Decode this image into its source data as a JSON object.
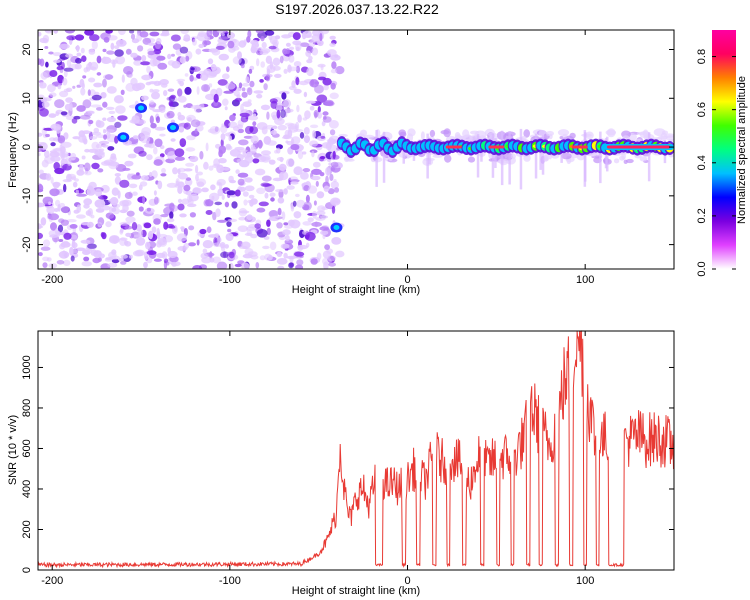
{
  "title": "S197.2026.037.13.22.R22",
  "chart_data": [
    {
      "type": "heatmap",
      "xlabel": "Height of straight line (km)",
      "ylabel": "Frequency (Hz)",
      "xlim": [
        -208,
        150
      ],
      "ylim": [
        -25,
        24
      ],
      "xticks": [
        -200,
        -100,
        0,
        100
      ],
      "yticks": [
        -20,
        -10,
        0,
        10,
        20
      ],
      "noise_region_x": [
        -208,
        -38
      ],
      "signal_ridge_frequency": 0,
      "signal_start_x": -37,
      "colorbar": {
        "label": "Normalized spectral amplitude",
        "range": [
          0.0,
          0.9
        ],
        "ticks": [
          0.0,
          0.2,
          0.4,
          0.6,
          0.8
        ],
        "tick_labels": [
          "0.0",
          "0.2",
          "0.4",
          "0.6",
          "0.8"
        ],
        "colormap": [
          "#ffffff",
          "#e040ff",
          "#7a00e0",
          "#0000ff",
          "#00c0ff",
          "#00ff80",
          "#40ff00",
          "#ffff00",
          "#ff8000",
          "#ff0060",
          "#ff00a0"
        ]
      }
    },
    {
      "type": "line",
      "xlabel": "Height of straight line (km)",
      "ylabel": "SNR (10 * v/v)",
      "xlim": [
        -208,
        150
      ],
      "ylim": [
        0,
        1180
      ],
      "xticks": [
        -200,
        -100,
        0,
        100
      ],
      "yticks": [
        0,
        200,
        400,
        600,
        800,
        1000
      ],
      "color": "#e83a34",
      "series": [
        {
          "name": "SNR",
          "x": [
            -208,
            -60,
            -50,
            -45,
            -40,
            -38,
            -36,
            -34,
            -32,
            -30,
            -28,
            -25,
            -22,
            -18,
            -15,
            -12,
            -10,
            -8,
            -5,
            -2,
            0,
            3,
            7,
            10,
            15,
            20,
            25,
            30,
            35,
            40,
            45,
            50,
            55,
            60,
            65,
            70,
            75,
            80,
            85,
            88,
            92,
            95,
            98,
            102,
            106,
            110,
            115,
            120,
            125,
            130,
            135,
            140,
            145,
            150
          ],
          "values": [
            25,
            30,
            80,
            150,
            280,
            640,
            430,
            300,
            250,
            320,
            380,
            400,
            320,
            440,
            470,
            420,
            420,
            430,
            400,
            440,
            440,
            500,
            460,
            440,
            580,
            530,
            560,
            520,
            420,
            560,
            520,
            550,
            560,
            560,
            640,
            800,
            700,
            620,
            760,
            920,
            1000,
            1150,
            1100,
            820,
            640,
            640,
            680,
            660,
            640,
            660,
            640,
            650,
            640,
            600
          ],
          "dropouts": [
            [
              -18,
              -14
            ],
            [
              -3,
              -1
            ],
            [
              5,
              7
            ],
            [
              14,
              16
            ],
            [
              22,
              24
            ],
            [
              31,
              33
            ],
            [
              41,
              43
            ],
            [
              50,
              52
            ],
            [
              58,
              60
            ],
            [
              67,
              69
            ],
            [
              74,
              76
            ],
            [
              83,
              85
            ],
            [
              91,
              93
            ],
            [
              99,
              101
            ],
            [
              106,
              108
            ],
            [
              113,
              122
            ]
          ]
        }
      ]
    }
  ]
}
